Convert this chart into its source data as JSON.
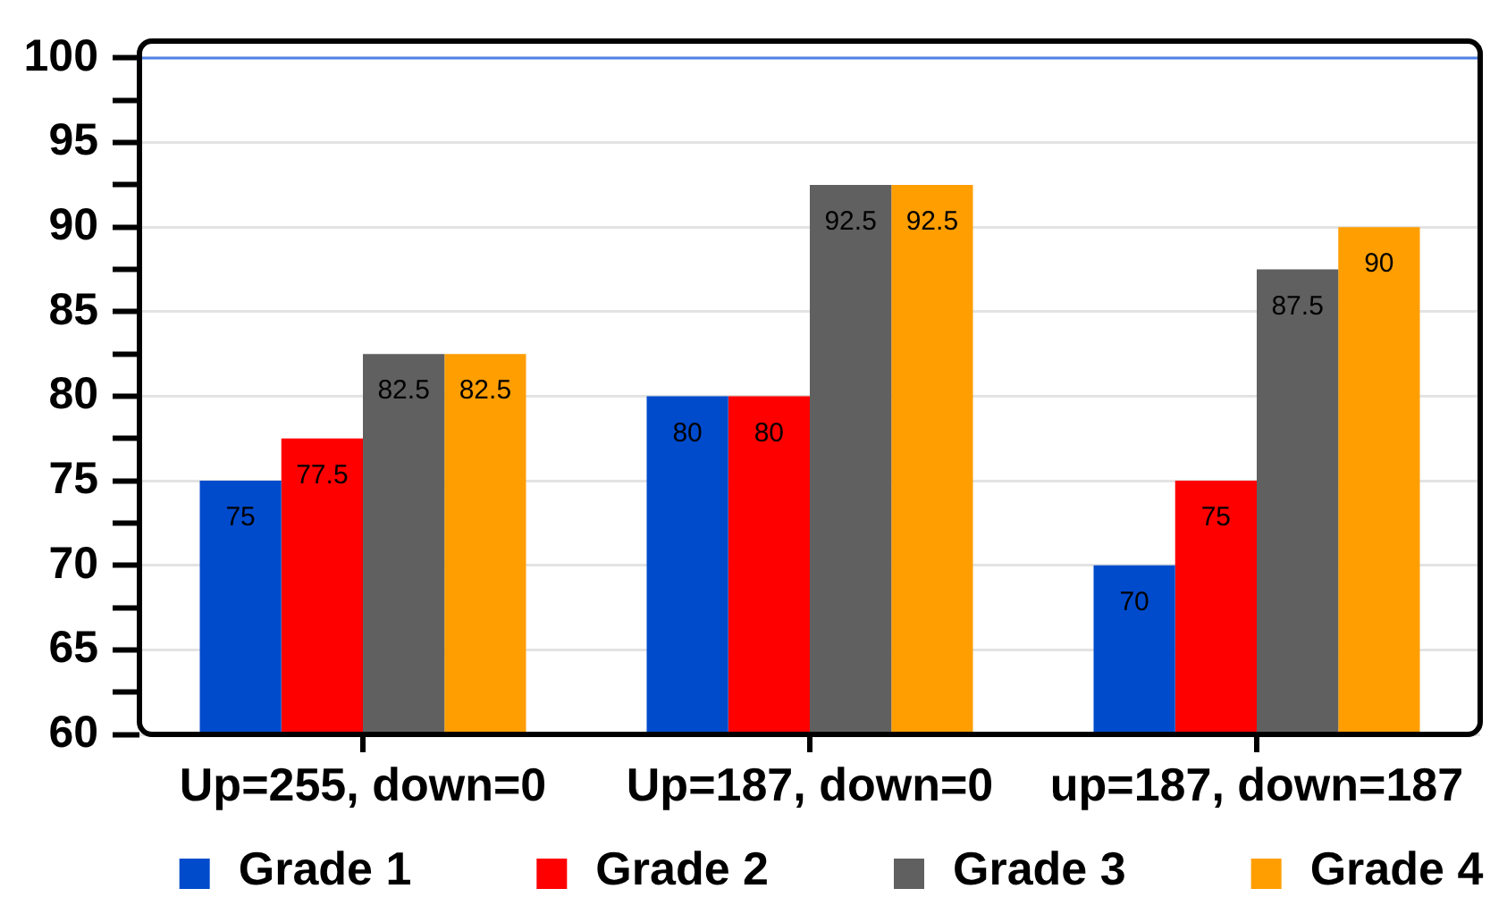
{
  "chart_data": {
    "type": "bar",
    "categories": [
      "Up=255, down=0",
      "Up=187, down=0",
      "up=187, down=187"
    ],
    "series": [
      {
        "name": "Grade 1",
        "color": "#004bcc",
        "values": [
          75,
          80,
          70
        ]
      },
      {
        "name": "Grade 2",
        "color": "#fe0000",
        "values": [
          77.5,
          80,
          75
        ]
      },
      {
        "name": "Grade 3",
        "color": "#606060",
        "values": [
          82.5,
          92.5,
          87.5
        ]
      },
      {
        "name": "Grade 4",
        "color": "#ff9e00",
        "values": [
          82.5,
          92.5,
          90
        ]
      }
    ],
    "ylim": [
      60,
      101
    ],
    "yticks": [
      60,
      {
        "value": 62.5,
        "label": null
      },
      65,
      {
        "value": 67.5,
        "label": null
      },
      70,
      {
        "value": 72.5,
        "label": null
      },
      75,
      {
        "value": 77.5,
        "label": null
      },
      80,
      {
        "value": 82.5,
        "label": null
      },
      85,
      {
        "value": 87.5,
        "label": null
      },
      90,
      {
        "value": 92.5,
        "label": null
      },
      95,
      {
        "value": 97.5,
        "label": null
      },
      100
    ],
    "ref_lines": [
      {
        "axis": "y",
        "value": 100,
        "color": "#4f81e8"
      }
    ],
    "grid": "y",
    "legend": "bottom",
    "data_labels": true
  }
}
